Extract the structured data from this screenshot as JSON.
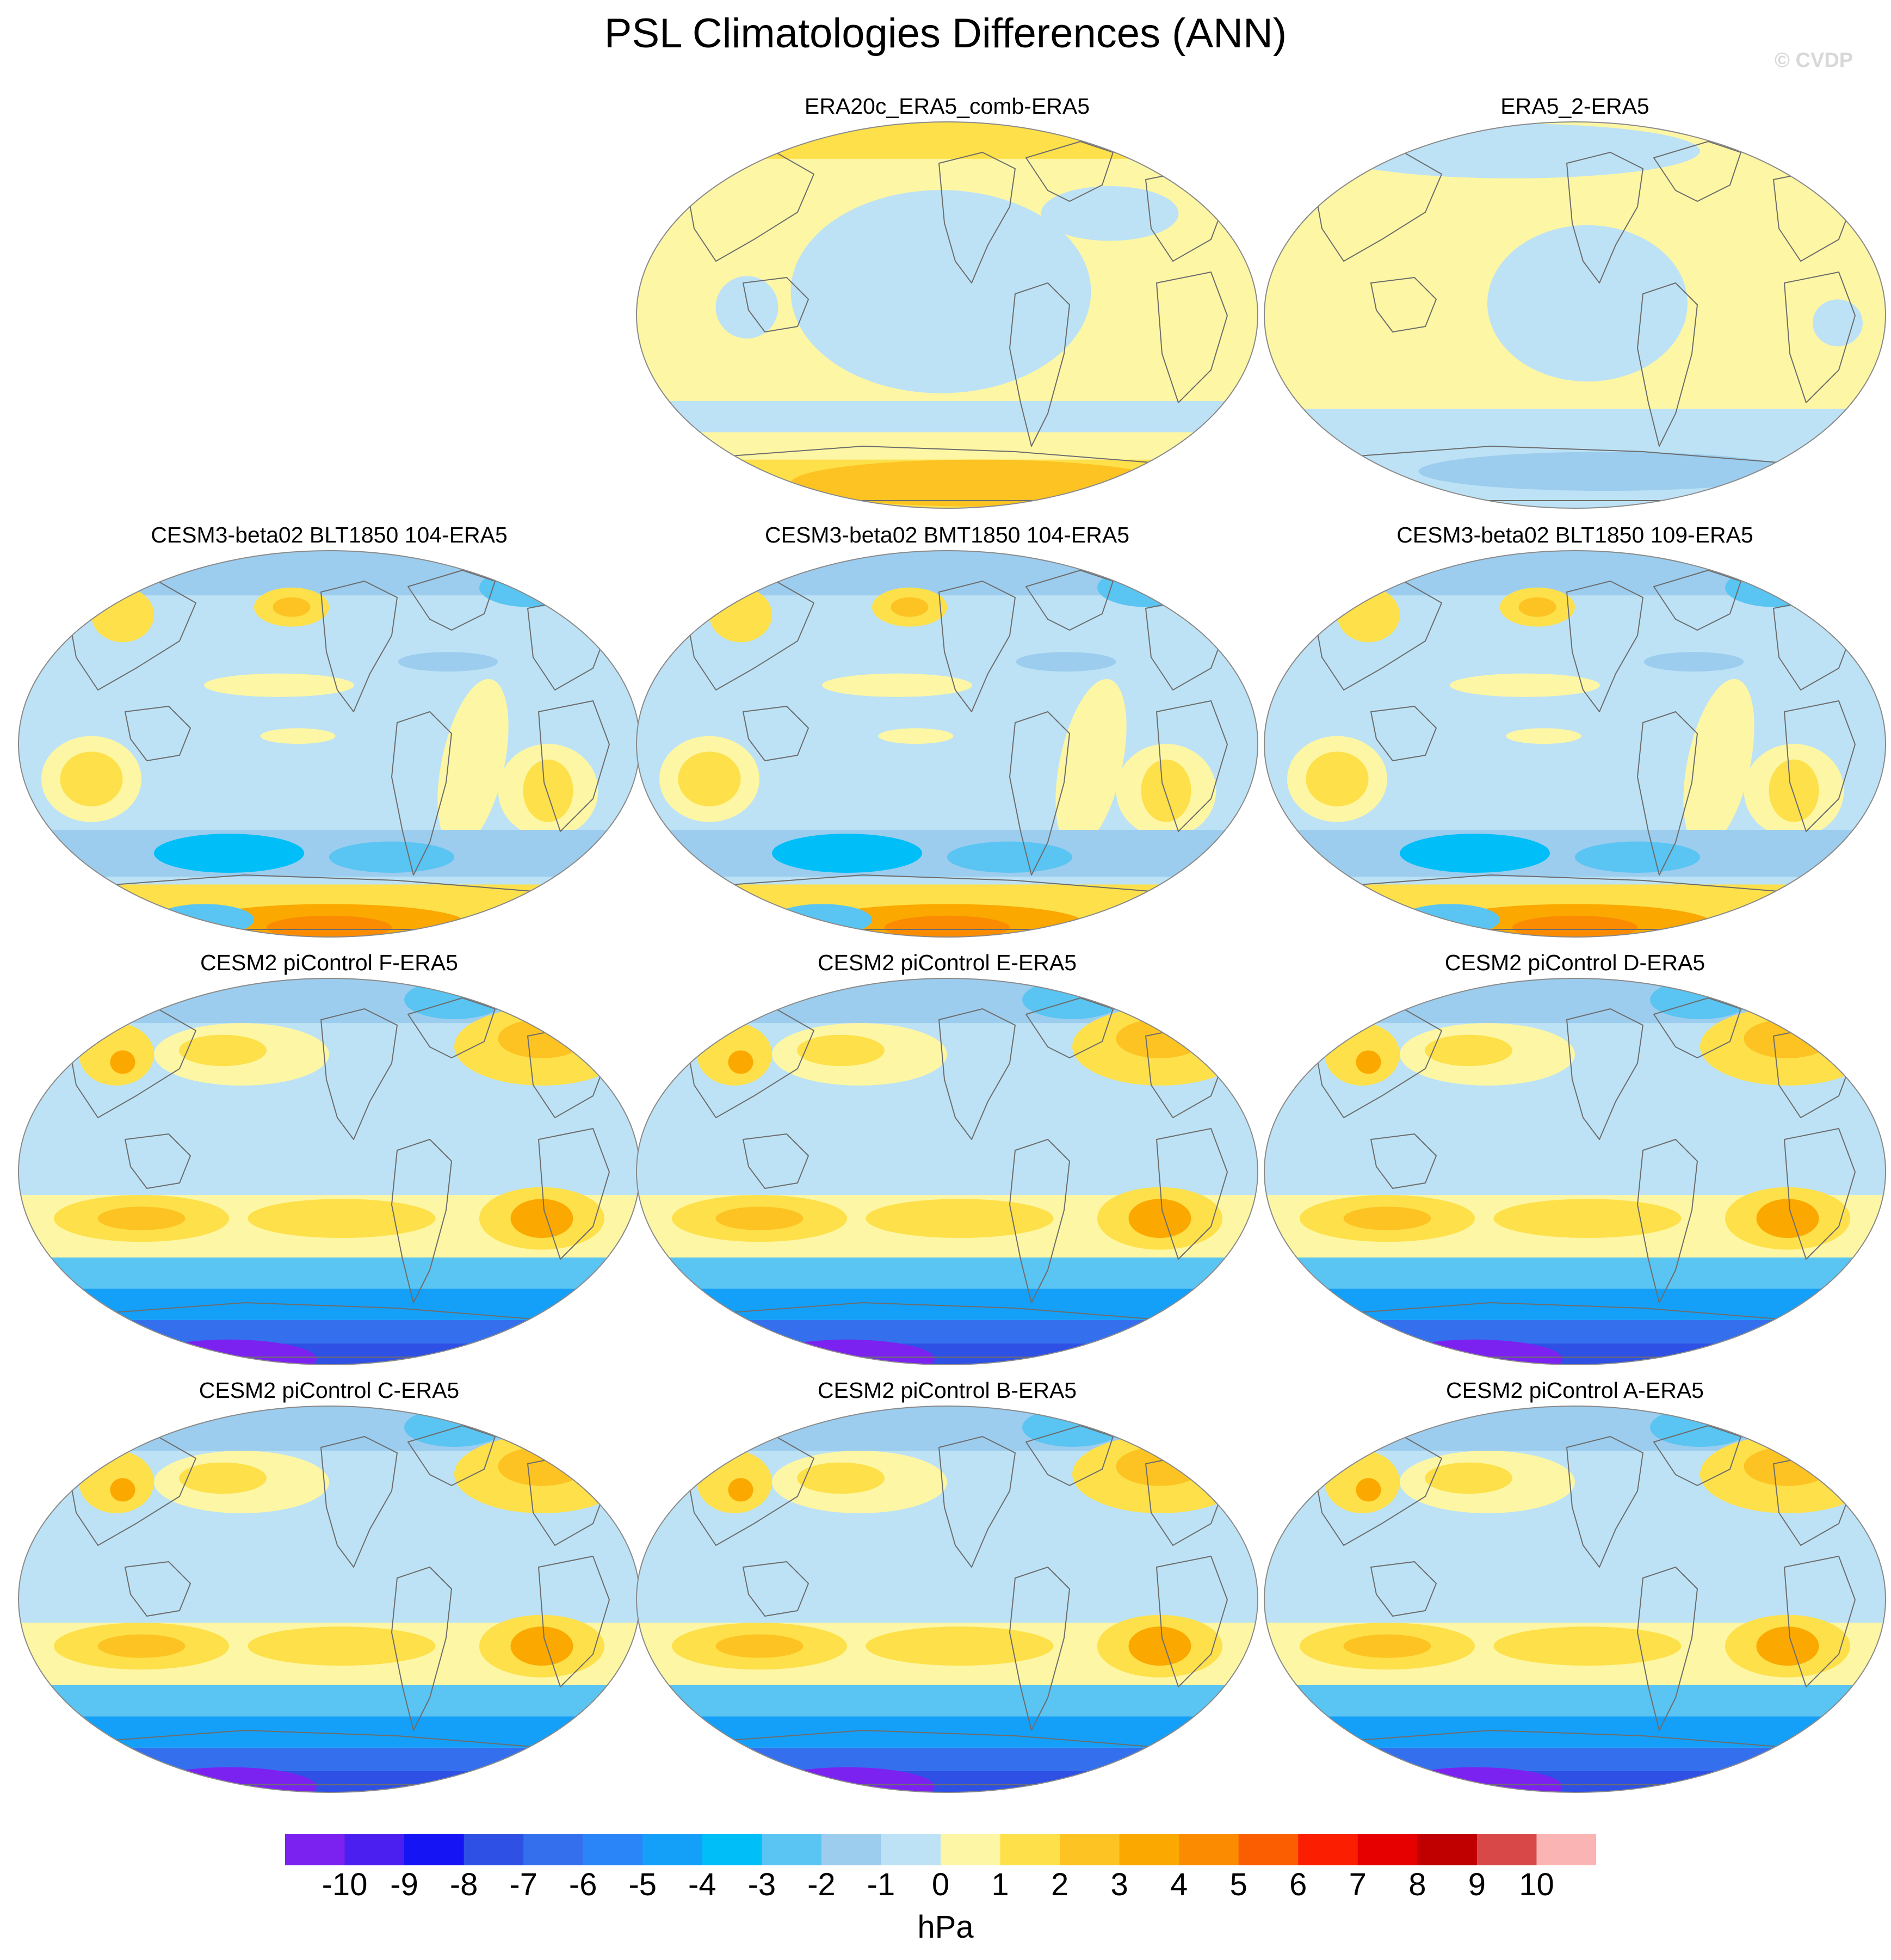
{
  "figure": {
    "title": "PSL Climatologies Differences (ANN)",
    "credit": "© CVDP",
    "units": "hPa"
  },
  "colors": {
    "land_outline": "#6d6d6d",
    "map_border": "#8a8a8a"
  },
  "colorbar": {
    "levels": [
      -10,
      -9,
      -8,
      -7,
      -6,
      -5,
      -4,
      -3,
      -2,
      -1,
      0,
      1,
      2,
      3,
      4,
      5,
      6,
      7,
      8,
      9,
      10
    ],
    "tick_labels": [
      "-10",
      "-9",
      "-8",
      "-7",
      "-6",
      "-5",
      "-4",
      "-3",
      "-2",
      "-1",
      "0",
      "1",
      "2",
      "3",
      "4",
      "5",
      "6",
      "7",
      "8",
      "9",
      "10"
    ],
    "colors": [
      "#7c22f0",
      "#4b1ff0",
      "#1414f5",
      "#2e50e4",
      "#3470ee",
      "#2a86f8",
      "#14a0f8",
      "#00bef8",
      "#5ac4f2",
      "#9ccdee",
      "#bde2f5",
      "#fdf6a4",
      "#fde04a",
      "#fdc322",
      "#fba800",
      "#fb8b00",
      "#fb5e00",
      "#fb1e00",
      "#e60000",
      "#c00000",
      "#d84848",
      "#fbb4b4"
    ]
  },
  "panels": [
    {
      "id": "era20c",
      "title": "ERA20c_ERA5_comb-ERA5",
      "row": 0,
      "col": 1,
      "pattern": "reanalysis20c"
    },
    {
      "id": "era5-2",
      "title": "ERA5_2-ERA5",
      "row": 0,
      "col": 2,
      "pattern": "reanalysis5"
    },
    {
      "id": "blt104",
      "title": "CESM3-beta02 BLT1850 104-ERA5",
      "row": 1,
      "col": 0,
      "pattern": "cesm3"
    },
    {
      "id": "bmt104",
      "title": "CESM3-beta02 BMT1850 104-ERA5",
      "row": 1,
      "col": 1,
      "pattern": "cesm3"
    },
    {
      "id": "blt109",
      "title": "CESM3-beta02 BLT1850 109-ERA5",
      "row": 1,
      "col": 2,
      "pattern": "cesm3"
    },
    {
      "id": "picF",
      "title": "CESM2 piControl F-ERA5",
      "row": 2,
      "col": 0,
      "pattern": "cesm2"
    },
    {
      "id": "picE",
      "title": "CESM2 piControl E-ERA5",
      "row": 2,
      "col": 1,
      "pattern": "cesm2"
    },
    {
      "id": "picD",
      "title": "CESM2 piControl D-ERA5",
      "row": 2,
      "col": 2,
      "pattern": "cesm2"
    },
    {
      "id": "picC",
      "title": "CESM2 piControl C-ERA5",
      "row": 3,
      "col": 0,
      "pattern": "cesm2"
    },
    {
      "id": "picB",
      "title": "CESM2 piControl B-ERA5",
      "row": 3,
      "col": 1,
      "pattern": "cesm2"
    },
    {
      "id": "picA",
      "title": "CESM2 piControl A-ERA5",
      "row": 3,
      "col": 2,
      "pattern": "cesm2"
    }
  ]
}
